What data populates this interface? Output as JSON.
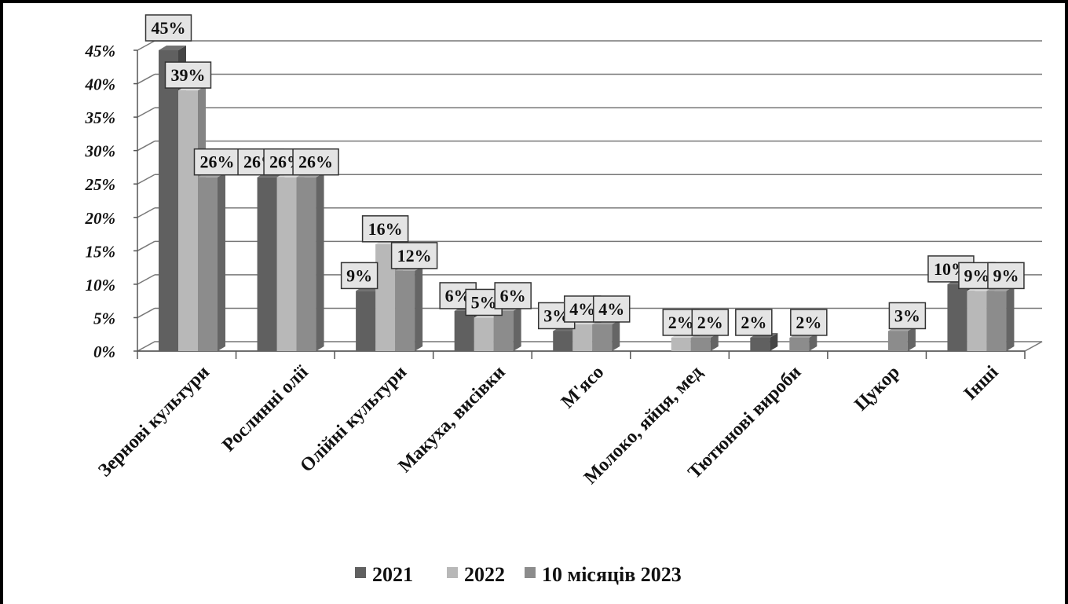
{
  "chart_data": {
    "type": "bar",
    "categories": [
      "Зернові культури",
      "Рослинні олії",
      "Олійні культури",
      "Макуха, висівки",
      "М'ясо",
      "Молоко, яйця, мед",
      "Тютюнові вироби",
      "Цукор",
      "Інші"
    ],
    "series": [
      {
        "name": "2021",
        "values": [
          45,
          26,
          9,
          6,
          3,
          0,
          2,
          0,
          10
        ],
        "color": "#606060",
        "labels": [
          "45%",
          "26%",
          "9%",
          "6%",
          "3%",
          "",
          "2%",
          "",
          "10%"
        ]
      },
      {
        "name": "2022",
        "values": [
          39,
          26,
          16,
          5,
          4,
          2,
          0,
          0,
          9
        ],
        "color": "#b8b8b8",
        "labels": [
          "39%",
          "26%",
          "16%",
          "5%",
          "4%",
          "2%",
          "",
          "",
          "9%"
        ]
      },
      {
        "name": "10 місяців 2023",
        "values": [
          26,
          26,
          12,
          6,
          4,
          2,
          2,
          3,
          9
        ],
        "color": "#8c8c8c",
        "labels": [
          "26%",
          "26%",
          "12%",
          "6%",
          "4%",
          "2%",
          "2%",
          "3%",
          "9%"
        ]
      }
    ],
    "y_ticks": [
      "0%",
      "5%",
      "10%",
      "15%",
      "20%",
      "25%",
      "30%",
      "35%",
      "40%",
      "45%"
    ],
    "ylim": [
      0,
      45
    ],
    "grid": true,
    "legend_position": "bottom",
    "title": "",
    "xlabel": "",
    "ylabel": ""
  }
}
